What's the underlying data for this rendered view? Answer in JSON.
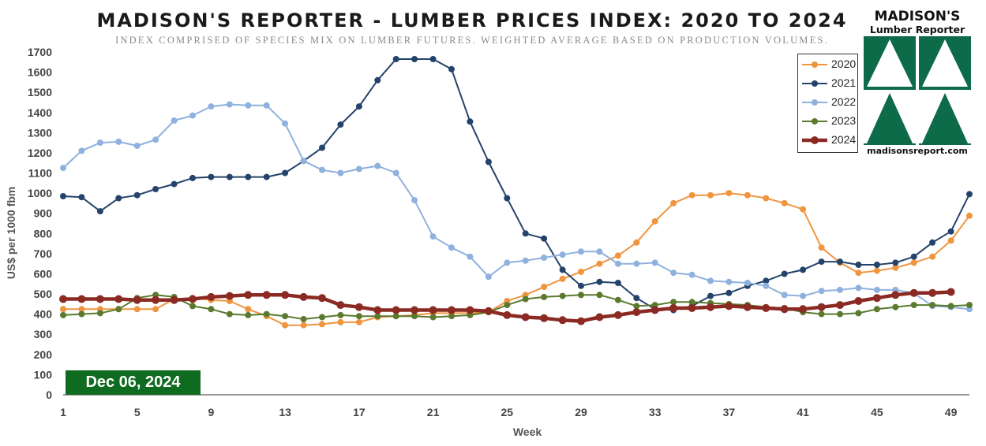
{
  "title": "MADISON'S REPORTER - LUMBER PRICES INDEX: 2020 TO 2024",
  "subtitle": "INDEX COMPRISED OF SPECIES MIX ON LUMBER FUTURES. WEIGHTED AVERAGE BASED ON PRODUCTION VOLUMES.",
  "date_badge": "Dec 06, 2024",
  "logo": {
    "name": "MADISON'S",
    "sub": "Lumber Reporter",
    "url": "madisonsreport.com",
    "color": "#0e6b4a"
  },
  "chart_data": {
    "type": "line",
    "title": "MADISON'S REPORTER - LUMBER PRICES INDEX: 2020 TO 2024",
    "xlabel": "Week",
    "ylabel": "US$ per 1000 fbm",
    "xlim": [
      1,
      50
    ],
    "ylim": [
      0,
      1700
    ],
    "x_ticks": [
      1,
      5,
      9,
      13,
      17,
      21,
      25,
      29,
      33,
      37,
      41,
      45,
      49
    ],
    "y_ticks": [
      0,
      100,
      200,
      300,
      400,
      500,
      600,
      700,
      800,
      900,
      1000,
      1100,
      1200,
      1300,
      1400,
      1500,
      1600,
      1700
    ],
    "grid": false,
    "legend_position": "top-right",
    "series": [
      {
        "name": "2020",
        "color": "#f0953f",
        "width": 2,
        "values": [
          425,
          425,
          425,
          425,
          425,
          425,
          475,
          480,
          470,
          465,
          425,
          390,
          345,
          345,
          350,
          360,
          360,
          385,
          390,
          395,
          405,
          405,
          405,
          410,
          465,
          495,
          535,
          575,
          610,
          650,
          690,
          755,
          860,
          950,
          990,
          990,
          1000,
          990,
          975,
          950,
          920,
          730,
          655,
          605,
          615,
          630,
          655,
          685,
          765,
          888
        ]
      },
      {
        "name": "2021",
        "color": "#24436b",
        "width": 2,
        "values": [
          985,
          980,
          910,
          975,
          990,
          1020,
          1045,
          1075,
          1080,
          1080,
          1080,
          1080,
          1100,
          1160,
          1225,
          1340,
          1430,
          1560,
          1665,
          1665,
          1665,
          1615,
          1355,
          1155,
          975,
          800,
          775,
          620,
          540,
          560,
          555,
          480,
          425,
          420,
          440,
          490,
          505,
          540,
          565,
          600,
          620,
          660,
          660,
          645,
          645,
          655,
          685,
          755,
          810,
          995
        ]
      },
      {
        "name": "2022",
        "color": "#8fb1de",
        "width": 2,
        "values": [
          1125,
          1210,
          1250,
          1255,
          1235,
          1265,
          1360,
          1385,
          1430,
          1440,
          1435,
          1435,
          1345,
          1160,
          1115,
          1100,
          1120,
          1135,
          1100,
          965,
          785,
          730,
          685,
          585,
          655,
          665,
          680,
          695,
          710,
          710,
          650,
          650,
          655,
          605,
          595,
          565,
          560,
          555,
          540,
          495,
          490,
          515,
          520,
          530,
          520,
          520,
          505,
          440,
          435,
          425
        ]
      },
      {
        "name": "2023",
        "color": "#5a7a2e",
        "width": 2,
        "values": [
          395,
          400,
          405,
          425,
          480,
          495,
          485,
          440,
          425,
          400,
          395,
          400,
          390,
          375,
          385,
          395,
          390,
          390,
          390,
          390,
          385,
          390,
          395,
          410,
          445,
          475,
          485,
          490,
          495,
          495,
          470,
          440,
          445,
          460,
          460,
          455,
          450,
          445,
          435,
          430,
          410,
          400,
          400,
          405,
          425,
          435,
          445,
          445,
          440,
          445
        ]
      },
      {
        "name": "2024",
        "color": "#8b2a22",
        "width": 4.5,
        "values": [
          475,
          475,
          475,
          475,
          470,
          470,
          470,
          475,
          485,
          490,
          495,
          495,
          495,
          485,
          480,
          445,
          435,
          420,
          420,
          420,
          420,
          420,
          420,
          415,
          395,
          385,
          380,
          370,
          365,
          385,
          395,
          410,
          420,
          430,
          430,
          435,
          440,
          435,
          430,
          425,
          425,
          435,
          445,
          465,
          480,
          495,
          505,
          505,
          510,
          null
        ]
      }
    ]
  }
}
